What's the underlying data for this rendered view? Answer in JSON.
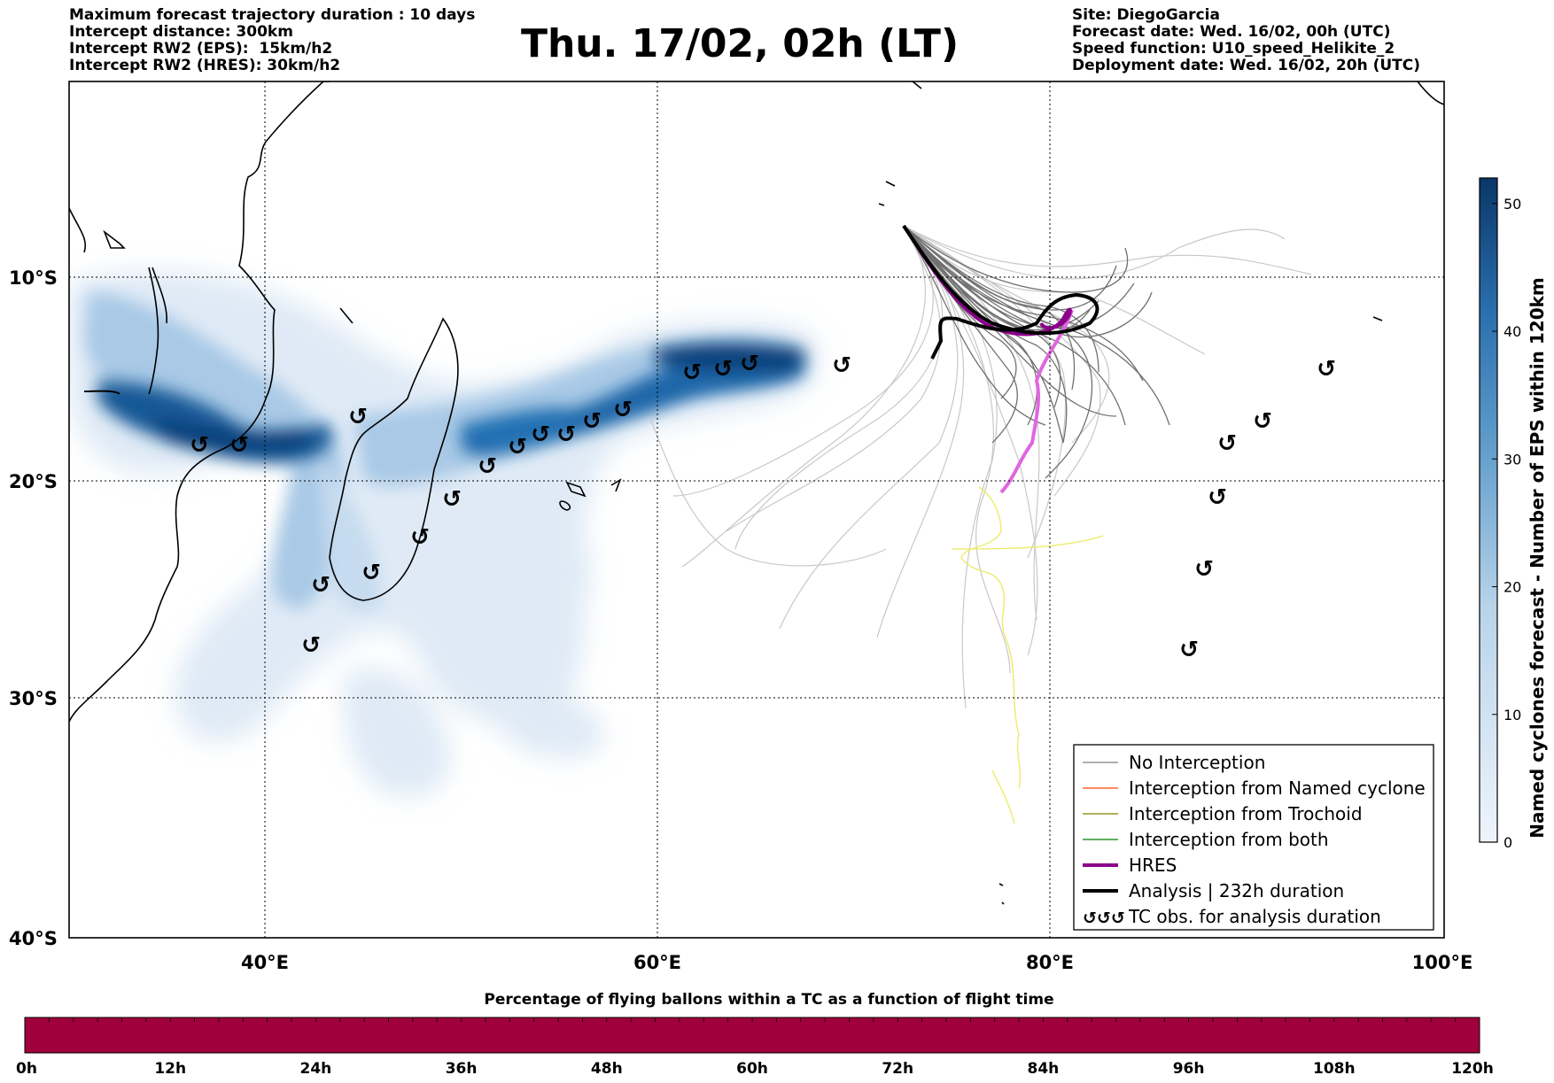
{
  "header_left": {
    "line1": "Maximum forecast trajectory duration : 10 days",
    "line2": "Intercept distance: 300km",
    "line3": "Intercept RW2 (EPS):  15km/h2",
    "line4": "Intercept RW2 (HRES): 30km/h2"
  },
  "title": "Thu. 17/02, 02h (LT)",
  "header_right": {
    "line1": "Site: DiegoGarcia",
    "line2": "Forecast date: Wed. 16/02, 00h (UTC)",
    "line3": "Speed function: U10_speed_Helikite_2",
    "line4": "Deployment date: Wed. 16/02, 20h (UTC)"
  },
  "map": {
    "lat_labels": [
      "10°S",
      "20°S",
      "30°S",
      "40°S"
    ],
    "lon_labels": [
      "40°E",
      "60°E",
      "80°E",
      "100°E"
    ],
    "grid": "dotted",
    "colors": {
      "density_dark": "#0b3f77",
      "density_light": "#dce9f6",
      "no_interception": "#808080",
      "trajectory_light": "#c8c8c8",
      "hres": "#8b008b",
      "hres_forecast": "#e066e0",
      "analysis": "#000000",
      "yellow_track": "#eeee66"
    }
  },
  "colorbar": {
    "ticks": [
      "0",
      "10",
      "20",
      "30",
      "40",
      "50"
    ],
    "label": "Named cyclones forecast - Number of EPS within 120km",
    "dark": "#0b3f77",
    "light": "#dce9f6"
  },
  "legend": {
    "items": [
      {
        "label": "No Interception",
        "color": "#808080",
        "style": "thin"
      },
      {
        "label": "Interception from Named cyclone",
        "color": "#ff4500",
        "style": "thin"
      },
      {
        "label": "Interception from Trochoid",
        "color": "#808000",
        "style": "thin"
      },
      {
        "label": "Interception from both",
        "color": "#008000",
        "style": "thin"
      },
      {
        "label": "HRES",
        "color": "#8b008b",
        "style": "thick"
      },
      {
        "label": "Analysis | 232h duration",
        "color": "#000000",
        "style": "thick"
      },
      {
        "label": "TC obs. for analysis duration",
        "color": "#000000",
        "style": "symbol",
        "symbol": "↺↺↺"
      }
    ]
  },
  "time_bar": {
    "title": "Percentage of flying ballons within a TC as a function of flight time",
    "color": "#a0003c",
    "ticks": [
      "0h",
      "12h",
      "24h",
      "36h",
      "48h",
      "60h",
      "72h",
      "84h",
      "96h",
      "108h",
      "120h"
    ]
  },
  "tc_symbol": "↺"
}
